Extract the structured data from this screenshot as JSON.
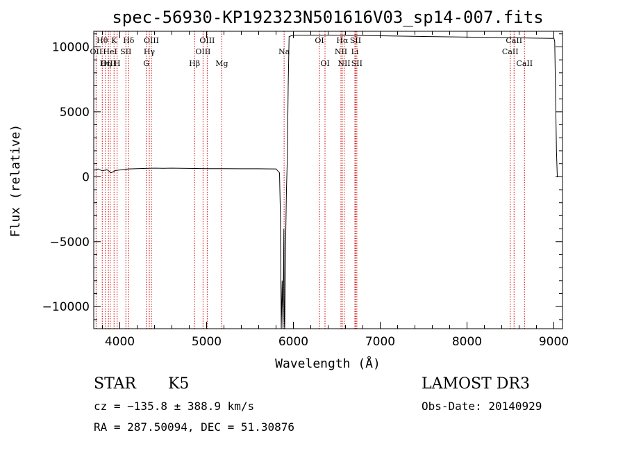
{
  "chart_data": {
    "type": "line",
    "title": "spec-56930-KP192323N501616V03_sp14-007.fits",
    "xlabel": "Wavelength (Å)",
    "ylabel": "Flux (relative)",
    "xlim": [
      3700,
      9100
    ],
    "ylim": [
      -11700,
      11200
    ],
    "xticks": [
      4000,
      5000,
      6000,
      7000,
      8000,
      9000
    ],
    "xtick_labels": [
      "4000",
      "5000",
      "6000",
      "7000",
      "8000",
      "9000"
    ],
    "yticks": [
      -10000,
      -5000,
      0,
      5000,
      10000
    ],
    "ytick_labels": [
      "−10000",
      "−5000",
      "0",
      "5000",
      "10000"
    ],
    "grid": false,
    "series": [
      {
        "x": [
          3700,
          3750,
          3800,
          3850,
          3900,
          3950,
          4000,
          4100,
          4200,
          4300,
          4400,
          4500,
          4600,
          4800,
          5000,
          5200,
          5400,
          5600,
          5800,
          5840,
          5850,
          5860,
          5870,
          5880,
          5890,
          5895,
          5900,
          5910,
          5920,
          5930,
          5940,
          5950,
          6000,
          6500,
          7000,
          7500,
          8000,
          8500,
          8990,
          9000,
          9010,
          9030,
          9040,
          9050
        ],
        "y": [
          500,
          600,
          450,
          550,
          300,
          480,
          520,
          600,
          620,
          640,
          660,
          650,
          660,
          640,
          620,
          620,
          610,
          610,
          600,
          300,
          -3000,
          -12000,
          -8000,
          -12000,
          -4000,
          -11000,
          -12000,
          -5000,
          -1000,
          1500,
          7000,
          10800,
          10900,
          10900,
          10850,
          10800,
          10750,
          10700,
          10650,
          10700,
          10400,
          2000,
          0,
          0
        ]
      }
    ],
    "lines": [
      {
        "x": 3727,
        "label": "OII",
        "row": 1
      },
      {
        "x": 3798,
        "label": "Hθ",
        "row": 0
      },
      {
        "x": 3835,
        "label": "Hη",
        "row": 2
      },
      {
        "x": 3869,
        "label": "OIII",
        "row": 2
      },
      {
        "x": 3889,
        "label": "HeI",
        "row": 1
      },
      {
        "x": 3934,
        "label": "K",
        "row": 0
      },
      {
        "x": 3969,
        "label": "H",
        "row": 2
      },
      {
        "x": 4070,
        "label": "SII",
        "row": 1
      },
      {
        "x": 4102,
        "label": "Hδ",
        "row": 0
      },
      {
        "x": 4305,
        "label": "G",
        "row": 2
      },
      {
        "x": 4340,
        "label": "Hγ",
        "row": 1
      },
      {
        "x": 4364,
        "label": "OIII",
        "row": 0
      },
      {
        "x": 4861,
        "label": "Hβ",
        "row": 2
      },
      {
        "x": 4959,
        "label": "OIII",
        "row": 1
      },
      {
        "x": 5007,
        "label": "OIII",
        "row": 0
      },
      {
        "x": 5175,
        "label": "Mg",
        "row": 2
      },
      {
        "x": 5893,
        "label": "Na",
        "row": 1
      },
      {
        "x": 6300,
        "label": "OI",
        "row": 0
      },
      {
        "x": 6364,
        "label": "OI",
        "row": 2
      },
      {
        "x": 6548,
        "label": "NII",
        "row": 1
      },
      {
        "x": 6563,
        "label": "Hα",
        "row": 0
      },
      {
        "x": 6584,
        "label": "NII",
        "row": 2
      },
      {
        "x": 6708,
        "label": "Li",
        "row": 1
      },
      {
        "x": 6716,
        "label": "SII",
        "row": 0
      },
      {
        "x": 6731,
        "label": "SII",
        "row": 2
      },
      {
        "x": 8498,
        "label": "CaII",
        "row": 1
      },
      {
        "x": 8542,
        "label": "CaII",
        "row": 0
      },
      {
        "x": 8662,
        "label": "CaII",
        "row": 2
      }
    ]
  },
  "info": {
    "object_class": "STAR",
    "subclass": "K5",
    "survey": "LAMOST DR3",
    "cz": "cz = −135.8 ± 388.9 km/s",
    "obs_date": "Obs-Date: 20140929",
    "coords": "RA = 287.50094, DEC =  51.30876"
  },
  "colors": {
    "line_marker": "#cc0000",
    "spectrum": "#000000"
  }
}
